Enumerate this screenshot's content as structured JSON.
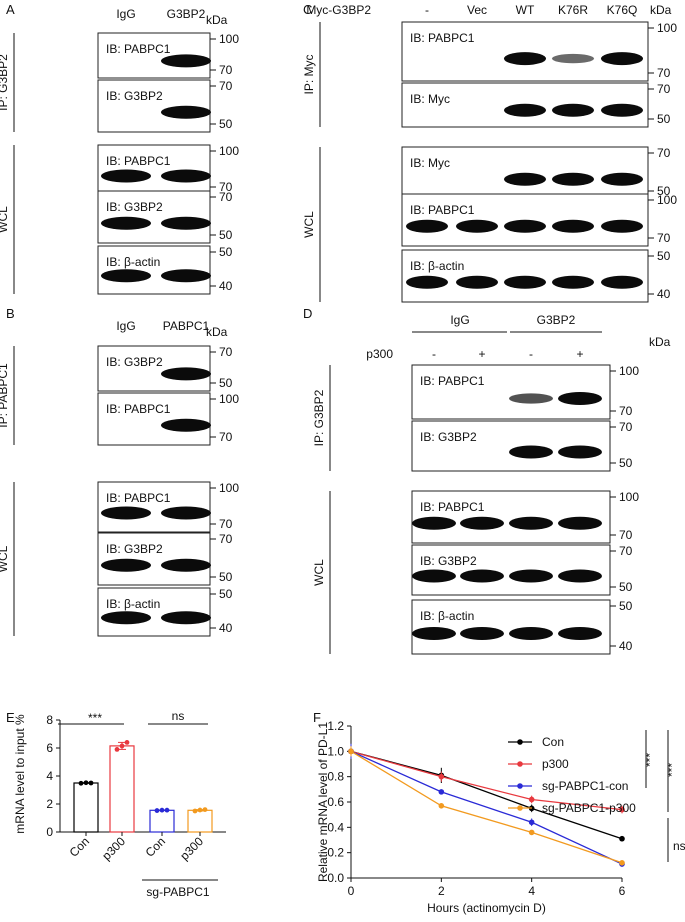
{
  "figure": {
    "A": {
      "letter": "A",
      "lanes": [
        "IgG",
        "G3BP2"
      ],
      "kda": "kDa",
      "ip_label": "IP: G3BP2",
      "wcl_label": "WCL",
      "blots": [
        {
          "label": "IB: PABPC1",
          "markers": [
            "100",
            "70"
          ],
          "bands": [
            0,
            1
          ]
        },
        {
          "label": "IB: G3BP2",
          "markers": [
            "70",
            "50"
          ],
          "bands": [
            0,
            1
          ]
        },
        {
          "label": "IB: PABPC1",
          "markers": [
            "100",
            "70"
          ],
          "bands": [
            1,
            1
          ]
        },
        {
          "label": "IB: G3BP2",
          "markers": [
            "70",
            "50"
          ],
          "bands": [
            1,
            1
          ]
        },
        {
          "label": "IB: β-actin",
          "markers": [
            "50",
            "40"
          ],
          "bands": [
            1,
            1
          ]
        }
      ]
    },
    "B": {
      "letter": "B",
      "lanes": [
        "IgG",
        "PABPC1"
      ],
      "kda": "kDa",
      "ip_label": "IP: PABPC1",
      "wcl_label": "WCL",
      "blots": [
        {
          "label": "IB: G3BP2",
          "markers": [
            "70",
            "50"
          ],
          "bands": [
            0,
            1
          ]
        },
        {
          "label": "IB: PABPC1",
          "markers": [
            "100",
            "70"
          ],
          "bands": [
            0,
            1
          ]
        },
        {
          "label": "IB: PABPC1",
          "markers": [
            "100",
            "70"
          ],
          "bands": [
            1,
            1
          ]
        },
        {
          "label": "IB: G3BP2",
          "markers": [
            "70",
            "50"
          ],
          "bands": [
            1,
            1
          ]
        },
        {
          "label": "IB: β-actin",
          "markers": [
            "50",
            "40"
          ],
          "bands": [
            1,
            1
          ]
        }
      ]
    },
    "C": {
      "letter": "C",
      "row_header": "Myc-G3BP2",
      "lanes": [
        "-",
        "Vec",
        "WT",
        "K76R",
        "K76Q"
      ],
      "kda": "kDa",
      "ip_label": "IP: Myc",
      "wcl_label": "WCL",
      "blots": [
        {
          "label": "IB: PABPC1",
          "markers": [
            "100",
            "70"
          ],
          "bands": [
            0,
            0,
            1,
            0.4,
            1
          ]
        },
        {
          "label": "IB: Myc",
          "markers": [
            "70",
            "50"
          ],
          "bands": [
            0,
            0,
            1,
            1,
            1
          ]
        },
        {
          "label": "IB: Myc",
          "markers": [
            "70",
            "50"
          ],
          "bands": [
            0,
            0,
            1,
            1,
            1
          ]
        },
        {
          "label": "IB: PABPC1",
          "markers": [
            "100",
            "70"
          ],
          "bands": [
            1,
            1,
            1,
            1,
            1
          ]
        },
        {
          "label": "IB: β-actin",
          "markers": [
            "50",
            "40"
          ],
          "bands": [
            1,
            1,
            1,
            1,
            1
          ]
        }
      ]
    },
    "D": {
      "letter": "D",
      "groups": [
        "IgG",
        "G3BP2"
      ],
      "row_header": "p300",
      "lanes": [
        "-",
        "+",
        "-",
        "+"
      ],
      "kda": "kDa",
      "ip_label": "IP: G3BP2",
      "wcl_label": "WCL",
      "blots": [
        {
          "label": "IB: PABPC1",
          "markers": [
            "100",
            "70"
          ],
          "bands": [
            0,
            0,
            0.55,
            1
          ]
        },
        {
          "label": "IB: G3BP2",
          "markers": [
            "70",
            "50"
          ],
          "bands": [
            0,
            0,
            1,
            1
          ]
        },
        {
          "label": "IB: PABPC1",
          "markers": [
            "100",
            "70"
          ],
          "bands": [
            1,
            1,
            1,
            1
          ]
        },
        {
          "label": "IB: G3BP2",
          "markers": [
            "70",
            "50"
          ],
          "bands": [
            1,
            1,
            1,
            1
          ]
        },
        {
          "label": "IB: β-actin",
          "markers": [
            "50",
            "40"
          ],
          "bands": [
            1,
            1,
            1,
            1
          ]
        }
      ]
    },
    "E": {
      "letter": "E",
      "sig": [
        "***",
        "ns"
      ],
      "group_label": "sg-PABPC1"
    },
    "F": {
      "letter": "F",
      "sig": [
        "***",
        "***",
        "ns"
      ]
    }
  },
  "chart_data": [
    {
      "type": "bar",
      "ylabel": "mRNA level to input %",
      "categories": [
        "Con",
        "p300",
        "Con",
        "p300"
      ],
      "values": [
        3.5,
        6.15,
        1.55,
        1.55
      ],
      "points": [
        [
          3.48,
          3.52,
          3.5
        ],
        [
          5.9,
          6.15,
          6.4
        ],
        [
          1.53,
          1.56,
          1.56
        ],
        [
          1.5,
          1.57,
          1.6
        ]
      ],
      "colors": [
        "#000000",
        "#e8393f",
        "#2a2ad6",
        "#f29a1f"
      ],
      "ylim": [
        0,
        8
      ],
      "yticks": [
        0,
        2,
        4,
        6,
        8
      ]
    },
    {
      "type": "line",
      "xlabel": "Hours (actinomycin D)",
      "ylabel": "Relative mRNA level of PD-L1",
      "x": [
        0,
        2,
        4,
        6
      ],
      "xticks": [
        0,
        2,
        4,
        6
      ],
      "ylim": [
        0,
        1.2
      ],
      "yticks": [
        0.0,
        0.2,
        0.4,
        0.6,
        0.8,
        1.0,
        1.2
      ],
      "series": [
        {
          "name": "Con",
          "color": "#000000",
          "values": [
            1.0,
            0.81,
            0.55,
            0.31
          ],
          "err": [
            0.05,
            0.06,
            0.03,
            0.01
          ]
        },
        {
          "name": "p300",
          "color": "#e8393f",
          "values": [
            1.0,
            0.8,
            0.62,
            0.54
          ],
          "err": [
            0.05,
            0.04,
            0.03,
            0.03
          ]
        },
        {
          "name": "sg-PABPC1-con",
          "color": "#2a2ad6",
          "values": [
            1.0,
            0.68,
            0.44,
            0.11
          ],
          "err": [
            0.06,
            0.02,
            0.03,
            0.01
          ]
        },
        {
          "name": "sg-PABPC1-p300",
          "color": "#f29a1f",
          "values": [
            1.0,
            0.57,
            0.36,
            0.12
          ],
          "err": [
            0.04,
            0.02,
            0.01,
            0.01
          ]
        }
      ]
    }
  ]
}
